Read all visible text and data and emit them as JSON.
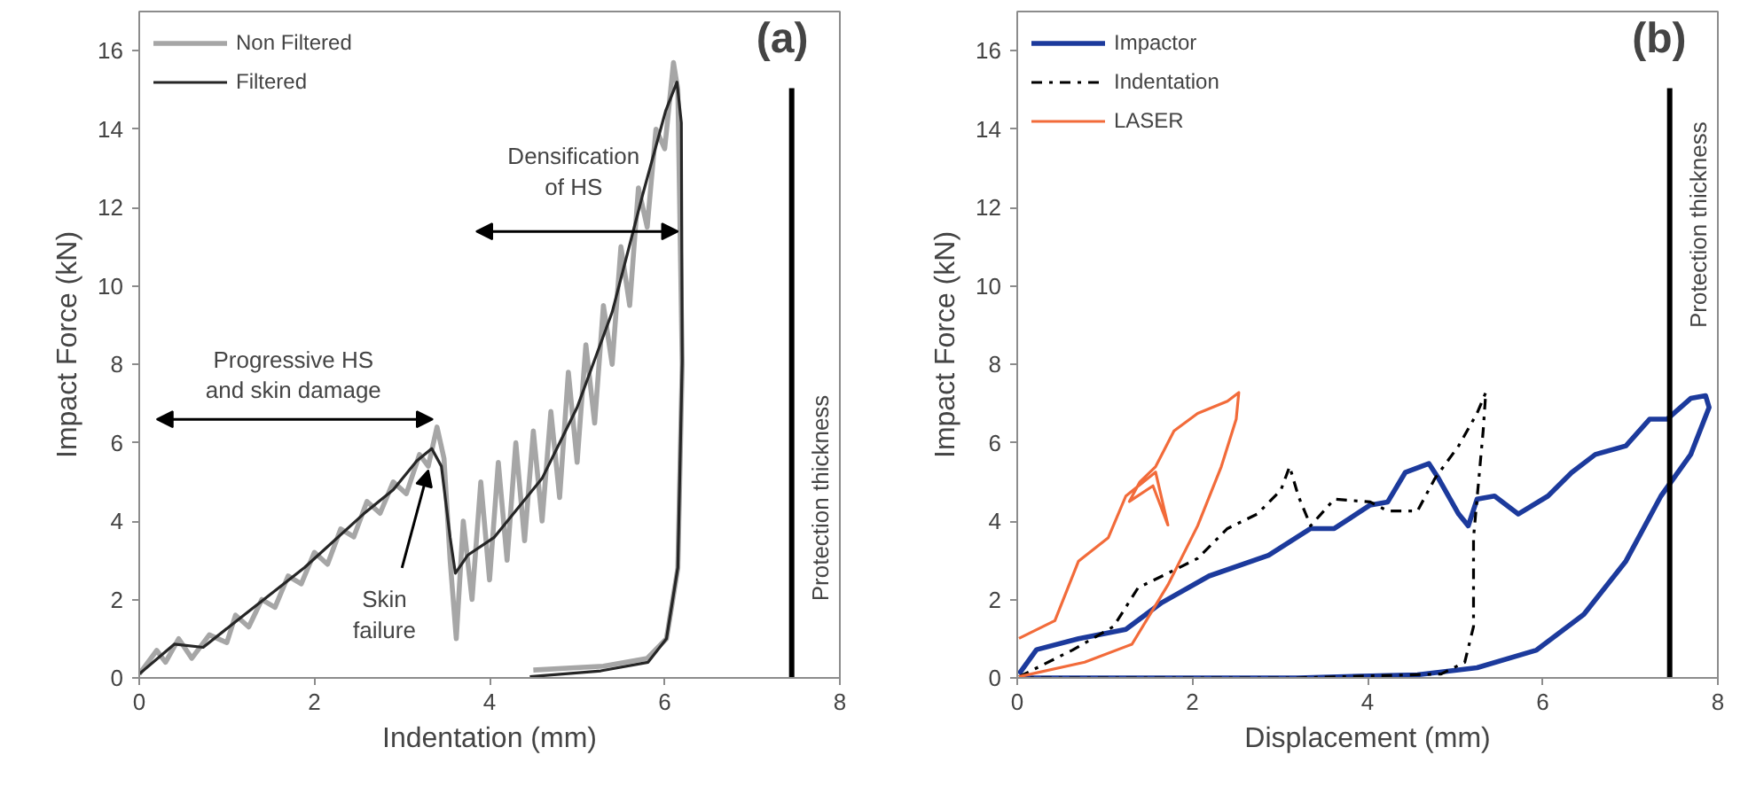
{
  "chart_data": [
    {
      "type": "line",
      "title": "(a)",
      "xlabel": "Indentation (mm)",
      "ylabel": "Impact Force (kN)",
      "xlim": [
        0,
        8
      ],
      "ylim": [
        0,
        17
      ],
      "xticks": [
        0,
        2,
        4,
        6,
        8
      ],
      "yticks": [
        0,
        2,
        4,
        6,
        8,
        10,
        12,
        14,
        16
      ],
      "legend": "top left",
      "line_style": "solid",
      "series": [
        {
          "name": "Non Filtered",
          "color": "#a6a6a6",
          "x": [
            0,
            0.2,
            0.3,
            0.45,
            0.6,
            0.8,
            1.0,
            1.1,
            1.25,
            1.4,
            1.55,
            1.7,
            1.85,
            2.0,
            2.15,
            2.3,
            2.45,
            2.6,
            2.75,
            2.9,
            3.05,
            3.2,
            3.3,
            3.4,
            3.48,
            3.55,
            3.62,
            3.7,
            3.8,
            3.9,
            4.0,
            4.1,
            4.2,
            4.3,
            4.4,
            4.5,
            4.6,
            4.7,
            4.8,
            4.9,
            5.0,
            5.1,
            5.2,
            5.3,
            5.4,
            5.5,
            5.6,
            5.7,
            5.8,
            5.9,
            6.0,
            6.1,
            6.15,
            6.2,
            6.15,
            6.02,
            5.8,
            5.3,
            4.5
          ],
          "values": [
            0.1,
            0.7,
            0.4,
            1.0,
            0.5,
            1.1,
            0.9,
            1.6,
            1.3,
            2.0,
            1.8,
            2.6,
            2.4,
            3.2,
            2.9,
            3.8,
            3.6,
            4.5,
            4.2,
            5.0,
            4.7,
            5.7,
            5.4,
            6.4,
            5.6,
            3.0,
            1.0,
            4.0,
            2.0,
            5.0,
            2.5,
            5.5,
            3.0,
            6.0,
            3.5,
            6.3,
            4.0,
            6.8,
            4.6,
            7.8,
            5.5,
            8.5,
            6.5,
            9.5,
            8.0,
            11.0,
            9.5,
            12.5,
            11.5,
            14.0,
            13.5,
            15.7,
            15.0,
            8.0,
            2.8,
            1.0,
            0.5,
            0.3,
            0.2
          ]
        },
        {
          "name": "Filtered",
          "color": "#262626",
          "x": [
            0,
            0.4,
            0.73,
            1.21,
            1.89,
            2.56,
            2.9,
            3.17,
            3.34,
            3.45,
            3.55,
            3.61,
            3.75,
            4.05,
            4.6,
            5.0,
            5.4,
            5.75,
            6.01,
            6.14,
            6.19,
            6.2,
            6.15,
            6.02,
            5.81,
            5.27,
            4.46
          ],
          "values": [
            0.1,
            0.86,
            0.78,
            1.63,
            2.82,
            4.18,
            4.8,
            5.54,
            5.85,
            5.4,
            3.58,
            2.67,
            3.13,
            3.58,
            5.09,
            6.9,
            9.33,
            12.34,
            14.46,
            15.2,
            14.16,
            8.1,
            2.82,
            1.0,
            0.4,
            0.18,
            0.03
          ]
        }
      ],
      "ref_lines": [
        {
          "axis": "x",
          "value": 7.45,
          "label": "Protection thickness",
          "color": "#000000"
        }
      ],
      "annotations": [
        "Progressive HS\nand skin damage",
        "Densification\nof HS",
        {
          "text": "Skin\nfailure",
          "x": 3.3,
          "y": 5.3
        }
      ]
    },
    {
      "type": "line",
      "title": "(b)",
      "xlabel": "Displacement (mm)",
      "ylabel": "Impact Force (kN)",
      "xlim": [
        0,
        8
      ],
      "ylim": [
        0,
        17
      ],
      "xticks": [
        0,
        2,
        4,
        6,
        8
      ],
      "yticks": [
        0,
        2,
        4,
        6,
        8,
        10,
        12,
        14,
        16
      ],
      "legend": "top left",
      "line_style": "solid",
      "series": [
        {
          "name": "Impactor",
          "color": "#1c3a9c",
          "x": [
            0.02,
            0.22,
            0.7,
            1.24,
            1.65,
            2.19,
            2.87,
            3.35,
            3.62,
            4.03,
            4.23,
            4.43,
            4.7,
            4.81,
            5.04,
            5.15,
            5.25,
            5.45,
            5.72,
            6.06,
            6.33,
            6.6,
            6.95,
            7.22,
            7.42,
            7.69,
            7.86,
            7.9,
            7.69,
            7.35,
            6.95,
            6.47,
            5.93,
            5.25,
            4.57,
            3.2,
            0.6,
            0.02
          ],
          "values": [
            0.1,
            0.72,
            1.0,
            1.24,
            1.92,
            2.6,
            3.13,
            3.81,
            3.81,
            4.41,
            4.49,
            5.24,
            5.47,
            5.09,
            4.18,
            3.88,
            4.56,
            4.64,
            4.18,
            4.64,
            5.24,
            5.7,
            5.92,
            6.6,
            6.6,
            7.13,
            7.2,
            6.9,
            5.7,
            4.64,
            2.98,
            1.62,
            0.71,
            0.26,
            0.08,
            0.0,
            0.0,
            0.0
          ]
        },
        {
          "name": "Indentation",
          "color": "#000000",
          "line_style": "dashdot",
          "x": [
            0.02,
            0.63,
            1.1,
            1.38,
            1.72,
            2.06,
            2.4,
            2.74,
            3.01,
            3.11,
            3.21,
            3.35,
            3.62,
            4.03,
            4.23,
            4.57,
            4.77,
            5.04,
            5.25,
            5.35,
            5.32,
            5.21,
            5.21,
            5.11,
            4.84,
            3.2,
            0.02
          ],
          "values": [
            0.03,
            0.71,
            1.31,
            2.3,
            2.67,
            3.05,
            3.81,
            4.18,
            4.79,
            5.39,
            4.64,
            3.88,
            4.56,
            4.49,
            4.26,
            4.26,
            5.09,
            5.92,
            6.75,
            7.28,
            6.3,
            3.58,
            1.31,
            0.4,
            0.1,
            0.0,
            0.0
          ]
        },
        {
          "name": "LASER",
          "color": "#f26b3a",
          "x": [
            0.02,
            0.43,
            0.7,
            1.04,
            1.24,
            1.58,
            1.72,
            1.55,
            1.28,
            1.4,
            1.58,
            1.79,
            2.06,
            2.4,
            2.53,
            2.5,
            2.33,
            2.06,
            1.72,
            1.31,
            0.77,
            0.02
          ],
          "values": [
            1.01,
            1.46,
            2.98,
            3.58,
            4.64,
            5.25,
            3.9,
            4.9,
            4.5,
            5.0,
            5.39,
            6.3,
            6.75,
            7.06,
            7.28,
            6.6,
            5.39,
            3.88,
            2.37,
            0.86,
            0.4,
            0.03
          ]
        }
      ],
      "ref_lines": [
        {
          "axis": "x",
          "value": 7.45,
          "label": "Protection thickness",
          "color": "#000000"
        }
      ]
    }
  ]
}
